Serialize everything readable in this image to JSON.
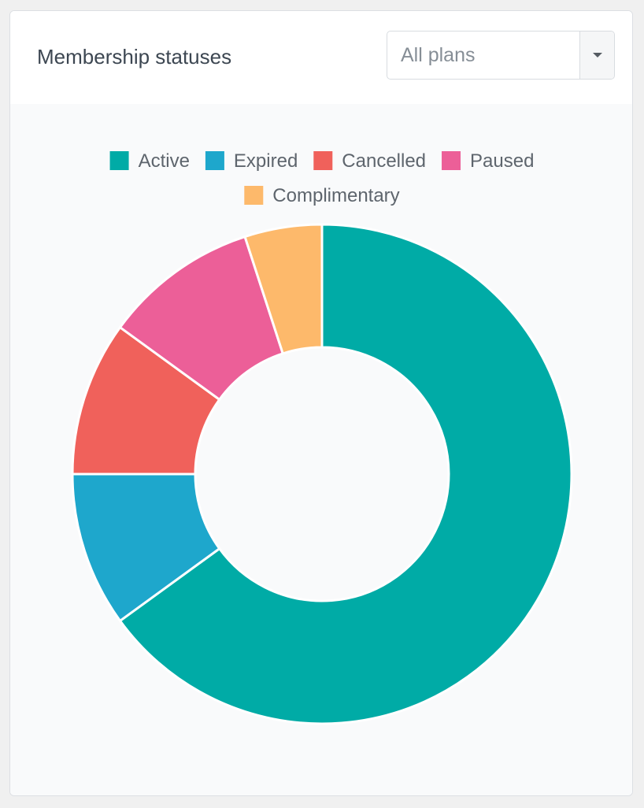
{
  "card": {
    "title": "Membership statuses",
    "plan_filter": {
      "selected": "All plans"
    }
  },
  "chart_data": {
    "type": "pie",
    "variant": "doughnut",
    "categories": [
      "Active",
      "Expired",
      "Cancelled",
      "Paused",
      "Complimentary"
    ],
    "values": [
      65,
      10,
      10,
      10,
      5
    ],
    "colors": [
      "#00aba6",
      "#1ea7cc",
      "#f0615b",
      "#ec5f98",
      "#fdb96b"
    ],
    "legend_position": "top",
    "start_angle": "top, clockwise"
  }
}
